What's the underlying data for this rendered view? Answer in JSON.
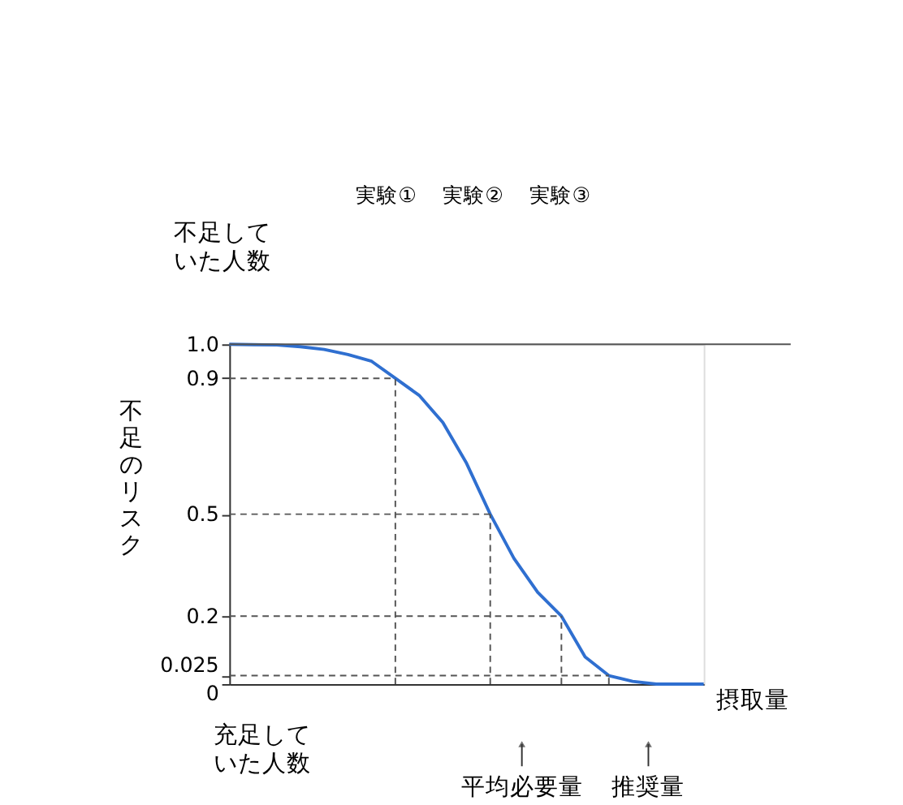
{
  "chart_data": {
    "type": "line",
    "ylabel": "不足のリスク",
    "xlabel": "摂取量",
    "ylim": [
      0,
      1.0
    ],
    "categories": [
      null,
      null,
      null,
      null,
      null,
      null,
      null,
      null,
      null,
      null,
      null,
      null,
      null,
      null,
      null,
      null,
      null,
      null,
      null,
      null,
      null
    ],
    "yticks": [
      0,
      0.025,
      0.2,
      0.5,
      0.9,
      {
        "value": 1.0,
        "label": "1.0"
      }
    ],
    "tick_labels": "y",
    "grid": false,
    "series": [
      {
        "color": "#2f6fd0",
        "line_style": "solid",
        "values": [
          1.0,
          0.999,
          0.998,
          0.993,
          0.985,
          0.97,
          0.95,
          0.9,
          0.85,
          0.77,
          0.65,
          0.5,
          0.37,
          0.27,
          0.2,
          0.08,
          0.025,
          0.008,
          0,
          0,
          0
        ]
      },
      {
        "color": "#555555",
        "line_style": "dashed",
        "values": [
          0.9,
          0.9,
          0.9,
          0.9,
          0.9,
          0.9,
          0.9,
          0.9,
          null,
          null,
          null,
          null,
          null,
          null,
          null,
          null,
          null,
          null,
          null,
          null,
          null
        ],
        "errors": [
          null,
          null,
          null,
          null,
          null,
          null,
          null,
          [
            0,
            0.9
          ],
          null,
          null,
          null,
          null,
          null,
          null,
          null,
          null,
          null,
          null,
          null,
          null,
          null
        ]
      },
      {
        "color": "#555555",
        "line_style": "dashed",
        "values": [
          0.5,
          0.5,
          0.5,
          0.5,
          0.5,
          0.5,
          0.5,
          0.5,
          0.5,
          0.5,
          0.5,
          0.5,
          null,
          null,
          null,
          null,
          null,
          null,
          null,
          null,
          null
        ],
        "errors": [
          null,
          null,
          null,
          null,
          null,
          null,
          null,
          null,
          null,
          null,
          null,
          [
            0,
            0.5
          ],
          null,
          null,
          null,
          null,
          null,
          null,
          null,
          null,
          null
        ]
      },
      {
        "color": "#555555",
        "line_style": "dashed",
        "values": [
          0.2,
          0.2,
          0.2,
          0.2,
          0.2,
          0.2,
          0.2,
          0.2,
          0.2,
          0.2,
          0.2,
          0.2,
          0.2,
          0.2,
          0.2,
          null,
          null,
          null,
          null,
          null,
          null
        ],
        "errors": [
          null,
          null,
          null,
          null,
          null,
          null,
          null,
          null,
          null,
          null,
          null,
          null,
          null,
          null,
          [
            0,
            0.2
          ],
          null,
          null,
          null,
          null,
          null,
          null
        ]
      },
      {
        "color": "#555555",
        "line_style": "dashed",
        "values": [
          0.025,
          0.025,
          0.025,
          0.025,
          0.025,
          0.025,
          0.025,
          0.025,
          0.025,
          0.025,
          0.025,
          0.025,
          0.025,
          0.025,
          0.025,
          0.025,
          0.025,
          null,
          null,
          null,
          null
        ],
        "errors": [
          null,
          null,
          null,
          null,
          null,
          null,
          null,
          null,
          null,
          null,
          null,
          null,
          null,
          null,
          null,
          null,
          [
            0,
            0.025
          ],
          null,
          null,
          null,
          null
        ]
      }
    ],
    "ref_lines": [
      {
        "axis": "y",
        "value": 1.0,
        "color": "#555555",
        "line_style": "solid"
      }
    ],
    "annotations": [
      "実験①",
      "実験②",
      "実験③",
      "不足していた人数",
      "充足していた人数",
      "平均必要量",
      "推奨量"
    ]
  }
}
